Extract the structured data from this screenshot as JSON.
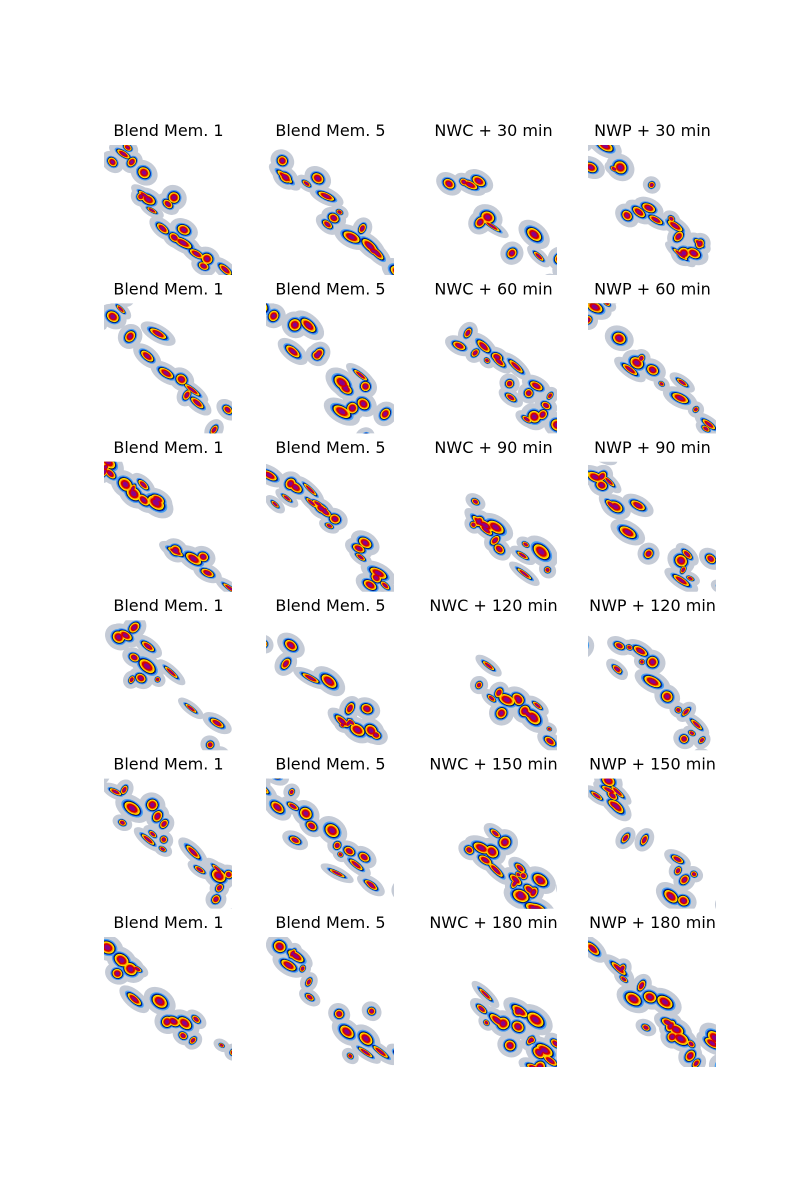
{
  "panels": [
    [
      "Blend Mem. 1",
      "Blend Mem. 5",
      "NWC + 30 min",
      "NWP + 30 min"
    ],
    [
      "Blend Mem. 1",
      "Blend Mem. 5",
      "NWC + 60 min",
      "NWP + 60 min"
    ],
    [
      "Blend Mem. 1",
      "Blend Mem. 5",
      "NWC + 90 min",
      "NWP + 90 min"
    ],
    [
      "Blend Mem. 1",
      "Blend Mem. 5",
      "NWC + 120 min",
      "NWP + 120 min"
    ],
    [
      "Blend Mem. 1",
      "Blend Mem. 5",
      "NWC + 150 min",
      "NWP + 150 min"
    ],
    [
      "Blend Mem. 1",
      "Blend Mem. 5",
      "NWC + 180 min",
      "NWP + 180 min"
    ]
  ]
}
